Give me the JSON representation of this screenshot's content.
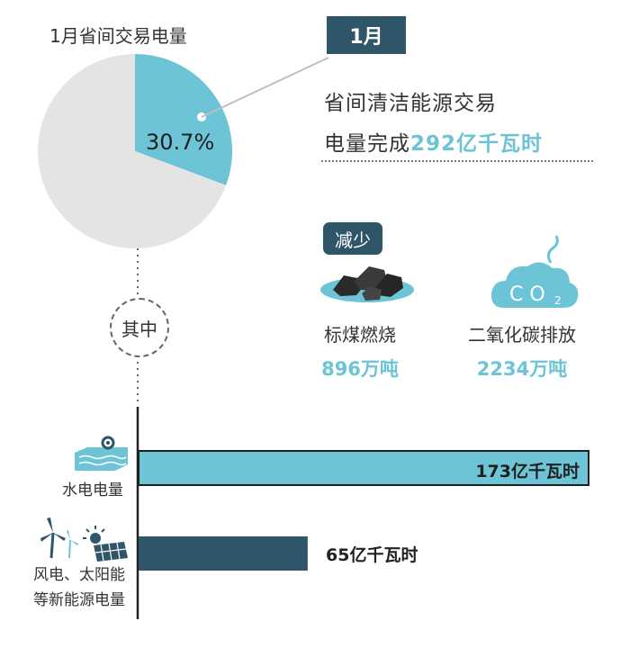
{
  "pie": {
    "title": "1月省间交易电量",
    "percent_label": "30.7%",
    "colors": {
      "highlight": "#6cc4d6",
      "rest": "#e4e4e4"
    }
  },
  "month_badge": "1月",
  "summary": {
    "line1": "省间清洁能源交易",
    "line2_prefix": "电量完成",
    "line2_value": "292亿千瓦时"
  },
  "reduce": {
    "badge": "减少",
    "items": [
      {
        "label": "标煤燃烧",
        "value": "896万吨",
        "icon": "coal-icon"
      },
      {
        "label": "二氧化碳排放",
        "value": "2234万吨",
        "icon": "co2-cloud-icon"
      }
    ]
  },
  "among_label": "其中",
  "bars": {
    "items": [
      {
        "label": "水电电量",
        "value_label": "173亿千瓦时",
        "icon": "hydro-dam-icon"
      },
      {
        "label_line1": "风电、太阳能",
        "label_line2": "等新能源电量",
        "value_label": "65亿千瓦时",
        "icon": "wind-solar-icon"
      }
    ]
  },
  "chart_data": [
    {
      "type": "pie",
      "title": "1月省间交易电量",
      "slices": [
        {
          "label": "",
          "value": 30.7
        },
        {
          "label": "",
          "value": 69.3
        }
      ],
      "colors": [
        "#6cc4d6",
        "#e4e4e4"
      ]
    },
    {
      "type": "bar",
      "orientation": "horizontal",
      "categories": [
        "水电电量",
        "风电、太阳能等新能源电量"
      ],
      "values": [
        173,
        65
      ],
      "value_labels": [
        "173亿千瓦时",
        "65亿千瓦时"
      ],
      "colors": [
        "#6cc4d6",
        "#2f5568"
      ]
    }
  ]
}
